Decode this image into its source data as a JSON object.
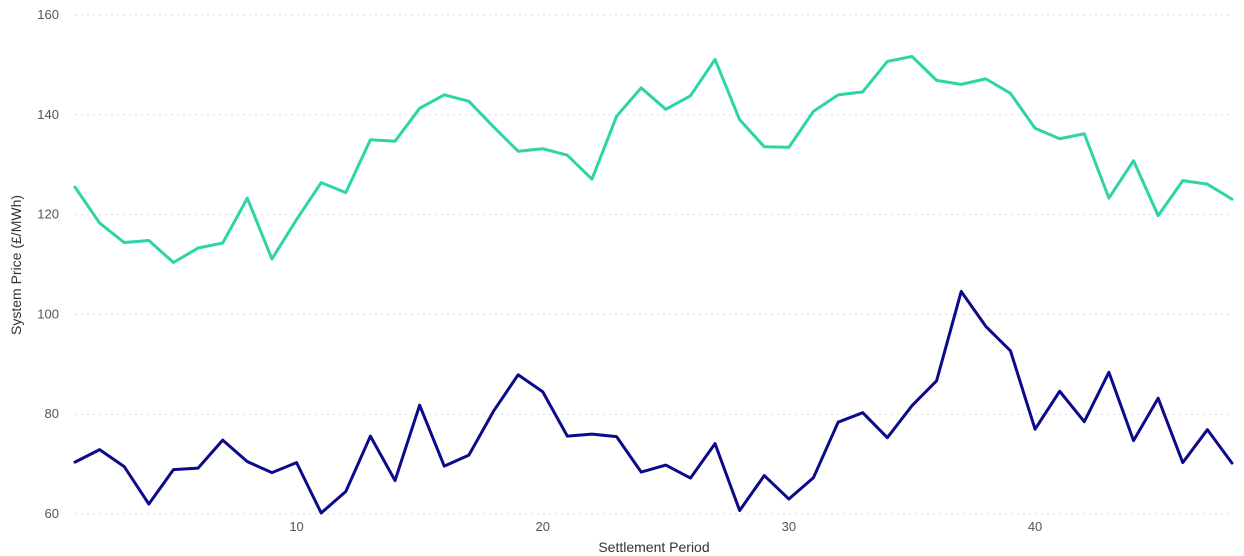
{
  "chart_data": {
    "type": "line",
    "title": "",
    "xlabel": "Settlement Period",
    "ylabel": "System Price (£/MWh)",
    "xlim": [
      1,
      48
    ],
    "ylim": [
      60,
      160
    ],
    "x_ticks": [
      10,
      20,
      30,
      40
    ],
    "y_ticks": [
      60,
      80,
      100,
      120,
      140,
      160
    ],
    "grid": "horizontal",
    "x": [
      1,
      2,
      3,
      4,
      5,
      6,
      7,
      8,
      9,
      10,
      11,
      12,
      13,
      14,
      15,
      16,
      17,
      18,
      19,
      20,
      21,
      22,
      23,
      24,
      25,
      26,
      27,
      28,
      29,
      30,
      31,
      32,
      33,
      34,
      35,
      36,
      37,
      38,
      39,
      40,
      41,
      42,
      43,
      44,
      45,
      46,
      47,
      48
    ],
    "series": [
      {
        "color": "#2dd4a7",
        "values": [
          125.5,
          118.3,
          114.4,
          114.8,
          110.4,
          113.3,
          114.3,
          123.3,
          111.1,
          119.0,
          126.4,
          124.4,
          135.0,
          134.7,
          141.3,
          144.0,
          142.7,
          137.6,
          132.7,
          133.2,
          131.9,
          127.1,
          139.7,
          145.4,
          141.1,
          143.8,
          151.1,
          139.0,
          133.6,
          133.5,
          140.7,
          144.0,
          144.6,
          150.7,
          151.7,
          146.9,
          146.1,
          147.2,
          144.3,
          137.3,
          135.2,
          136.2,
          123.3,
          130.8,
          119.8,
          126.8,
          126.1,
          123.1
        ]
      },
      {
        "color": "#0a0a8a",
        "values": [
          70.4,
          72.9,
          69.5,
          62.0,
          68.9,
          69.2,
          74.8,
          70.5,
          68.3,
          70.3,
          60.2,
          64.5,
          75.6,
          66.7,
          81.8,
          69.6,
          71.8,
          80.6,
          87.9,
          84.5,
          75.6,
          76.0,
          75.5,
          68.4,
          69.8,
          67.2,
          74.1,
          60.7,
          67.7,
          63.0,
          67.3,
          78.4,
          80.3,
          75.3,
          81.7,
          86.7,
          104.6,
          97.6,
          92.7,
          77.0,
          84.6,
          78.5,
          88.4,
          74.7,
          83.2,
          70.3,
          76.9,
          70.2
        ]
      }
    ]
  }
}
